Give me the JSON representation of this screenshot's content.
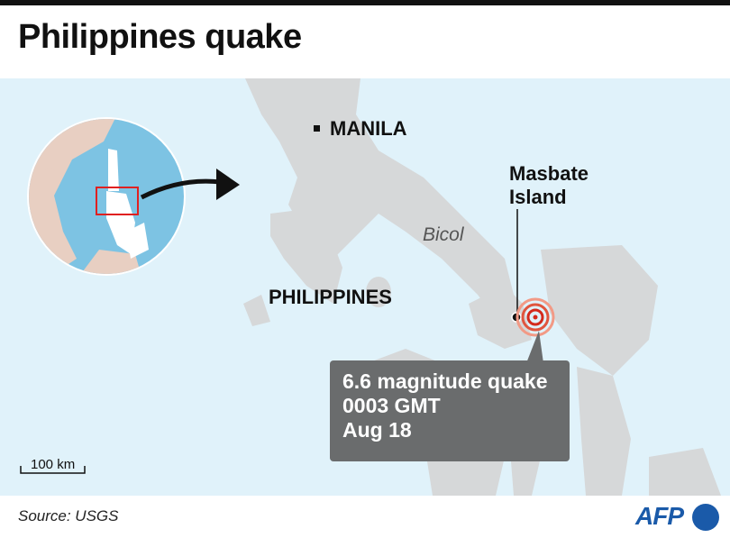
{
  "title": "Philippines quake",
  "map": {
    "labels": {
      "capital": "MANILA",
      "country": "PHILIPPINES",
      "region": "Bicol",
      "island_line1": "Masbate",
      "island_line2": "Island"
    },
    "callout": {
      "line1": "6.6 magnitude quake",
      "line2": "0003 GMT",
      "line3": "Aug 18"
    },
    "scale_bar": "100 km",
    "colors": {
      "sea": "#e0f2fa",
      "land": "#d6d8d9",
      "inset_sea": "#7dc3e3",
      "inset_land": "#e8cfc2",
      "highlight_box": "#e02020",
      "epicenter": "#d42a1c",
      "callout_bg": "#6a6c6d"
    }
  },
  "footer": {
    "source": "Source: USGS",
    "logo": "AFP"
  }
}
